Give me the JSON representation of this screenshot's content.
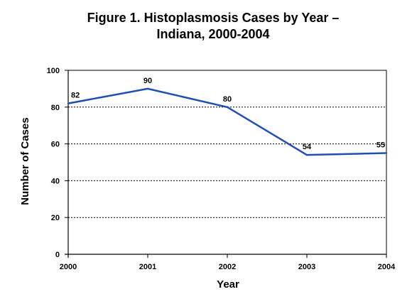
{
  "chart_data": {
    "type": "line",
    "title_lines": [
      "Figure 1. Histoplasmosis Cases by Year –",
      "Indiana, 2000-2004"
    ],
    "xlabel": "Year",
    "ylabel": "Number of Cases",
    "categories": [
      "2000",
      "2001",
      "2002",
      "2003",
      "2004"
    ],
    "series": [
      {
        "values": [
          82,
          90,
          80,
          54,
          55
        ],
        "color": "#1f4fb4"
      }
    ],
    "data_labels": [
      "82",
      "90",
      "80",
      "54",
      "55"
    ],
    "ylim": [
      0,
      100
    ],
    "yticks": [
      0,
      20,
      40,
      60,
      80,
      100
    ],
    "grid": true,
    "legend": "none"
  }
}
